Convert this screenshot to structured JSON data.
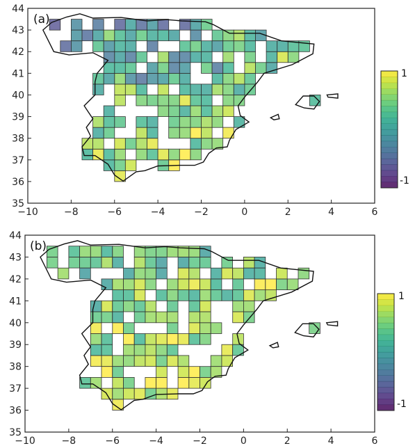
{
  "chart_data": [
    {
      "type": "heatmap",
      "panel_label": "(a)",
      "title": "",
      "xlabel": "",
      "ylabel": "",
      "xlim": [
        -10,
        6
      ],
      "ylim": [
        35,
        44
      ],
      "x_ticks": [
        "−10",
        "−8",
        "−6",
        "−4",
        "−2",
        "0",
        "2",
        "4",
        "6"
      ],
      "y_ticks": [
        "35",
        "36",
        "37",
        "38",
        "39",
        "40",
        "41",
        "42",
        "43",
        "44"
      ],
      "grid": false,
      "colorbar": {
        "min": -1,
        "max": 1,
        "max_label": "1",
        "min_label": "-1",
        "levels": 20,
        "colormap": "viridis"
      },
      "cell_size_deg": 0.5,
      "cell_coverage": "sparse grid of 0.5° land cells over mainland Spain and the Balearic Islands; mostly positive values (yellow/green) in the south and east, negative values (purple/blue) concentrated in the north-west and central area"
    },
    {
      "type": "heatmap",
      "panel_label": "(b)",
      "title": "",
      "xlabel": "",
      "ylabel": "",
      "xlim": [
        -10,
        6
      ],
      "ylim": [
        35,
        44
      ],
      "x_ticks": [
        "−10",
        "−8",
        "−6",
        "−4",
        "−2",
        "0",
        "2",
        "4",
        "6"
      ],
      "y_ticks": [
        "35",
        "36",
        "37",
        "38",
        "39",
        "40",
        "41",
        "42",
        "43",
        "44"
      ],
      "grid": false,
      "colorbar": {
        "min": -1,
        "max": 1,
        "max_label": "1",
        "min_label": "-1",
        "levels": 20,
        "colormap": "viridis"
      },
      "cell_size_deg": 0.5,
      "cell_coverage": "same 0.5° grid as panel (a); values predominantly positive (yellow/green) with fewer negative cells, mostly in the far north-west"
    }
  ],
  "colors": {
    "viridis": [
      "#440154",
      "#482475",
      "#414487",
      "#355f8d",
      "#2a788e",
      "#21918c",
      "#22a884",
      "#44bf70",
      "#7ad151",
      "#bddf26",
      "#fde725"
    ],
    "cell_alpha": 0.72,
    "coast": "#111111",
    "axis": "#222222"
  }
}
